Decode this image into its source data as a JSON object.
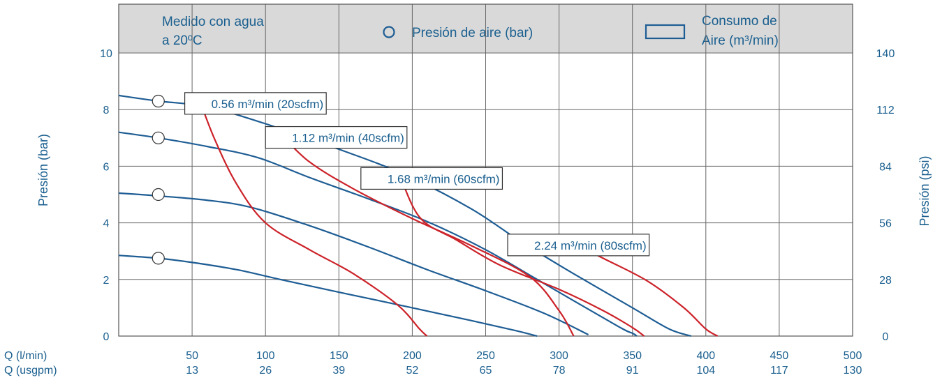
{
  "chart_data": {
    "type": "line",
    "legend": {
      "note_line1": "Medido con agua",
      "note_line2": "a 20ºC",
      "pressure_marker_label": "Presión de aire (bar)",
      "consumption_marker_label_line1": "Consumo de",
      "consumption_marker_label_line2": "Aire (m³/min)"
    },
    "ylabel_left": "Presión (bar)",
    "ylabel_right": "Presión (psi)",
    "x_row1_label": "Q (l/min)",
    "x_row2_label": "Q (usgpm)",
    "xlim": [
      0,
      500
    ],
    "ylim": [
      0,
      10
    ],
    "x_ticks_lmin": [
      "50",
      "100",
      "150",
      "200",
      "250",
      "300",
      "350",
      "400",
      "450",
      "500"
    ],
    "x_ticks_usgpm": [
      "13",
      "26",
      "39",
      "52",
      "65",
      "78",
      "91",
      "104",
      "117",
      "130"
    ],
    "y_ticks_bar": [
      "0",
      "2",
      "4",
      "6",
      "8",
      "10"
    ],
    "y_ticks_psi": [
      "0",
      "28",
      "56",
      "84",
      "112",
      "140"
    ],
    "colors": {
      "pressure_curve": "#1e5d94",
      "consumption_curve": "#cc2229",
      "text": "#1a5f8f"
    },
    "pressure_series": [
      {
        "marker": [
          27,
          2.75
        ],
        "points": [
          [
            0,
            2.85
          ],
          [
            27,
            2.75
          ],
          [
            50,
            2.6
          ],
          [
            80,
            2.35
          ],
          [
            110,
            2.0
          ],
          [
            150,
            1.55
          ],
          [
            200,
            1.0
          ],
          [
            240,
            0.55
          ],
          [
            270,
            0.2
          ],
          [
            285,
            0.0
          ]
        ]
      },
      {
        "marker": [
          27,
          5.0
        ],
        "points": [
          [
            0,
            5.05
          ],
          [
            27,
            4.95
          ],
          [
            60,
            4.8
          ],
          [
            90,
            4.55
          ],
          [
            130,
            3.9
          ],
          [
            170,
            3.15
          ],
          [
            210,
            2.35
          ],
          [
            250,
            1.6
          ],
          [
            290,
            0.8
          ],
          [
            320,
            0.05
          ]
        ]
      },
      {
        "marker": [
          27,
          7.0
        ],
        "points": [
          [
            0,
            7.2
          ],
          [
            27,
            7.0
          ],
          [
            60,
            6.7
          ],
          [
            95,
            6.3
          ],
          [
            130,
            5.6
          ],
          [
            170,
            4.85
          ],
          [
            210,
            4.05
          ],
          [
            250,
            3.05
          ],
          [
            290,
            1.85
          ],
          [
            340,
            0.35
          ],
          [
            350,
            0.1
          ],
          [
            353,
            0.0
          ]
        ]
      },
      {
        "marker": [
          27,
          8.3
        ],
        "points": [
          [
            0,
            8.5
          ],
          [
            27,
            8.3
          ],
          [
            60,
            8.1
          ],
          [
            100,
            7.5
          ],
          [
            150,
            6.6
          ],
          [
            195,
            5.7
          ],
          [
            240,
            4.5
          ],
          [
            275,
            3.3
          ],
          [
            310,
            2.2
          ],
          [
            350,
            1.0
          ],
          [
            375,
            0.25
          ],
          [
            390,
            0.0
          ]
        ]
      }
    ],
    "consumption_series": [
      {
        "label": "0.56 m³/min (20scfm)",
        "points": [
          [
            55,
            8.35
          ],
          [
            65,
            7.0
          ],
          [
            80,
            5.4
          ],
          [
            100,
            4.0
          ],
          [
            130,
            3.05
          ],
          [
            160,
            2.2
          ],
          [
            190,
            1.1
          ],
          [
            205,
            0.25
          ],
          [
            210,
            0.0
          ]
        ]
      },
      {
        "label": "1.12 m³/min (40scfm)",
        "points": [
          [
            110,
            7.15
          ],
          [
            130,
            6.15
          ],
          [
            160,
            5.2
          ],
          [
            200,
            4.15
          ],
          [
            240,
            3.2
          ],
          [
            280,
            2.1
          ],
          [
            300,
            0.9
          ],
          [
            310,
            0.0
          ]
        ]
      },
      {
        "label": "1.68 m³/min (60scfm)",
        "points": [
          [
            190,
            5.9
          ],
          [
            205,
            4.2
          ],
          [
            230,
            3.4
          ],
          [
            260,
            2.5
          ],
          [
            300,
            1.65
          ],
          [
            330,
            0.9
          ],
          [
            350,
            0.3
          ],
          [
            358,
            0.0
          ]
        ]
      },
      {
        "label": "2.24 m³/min (80scfm)",
        "points": [
          [
            305,
            3.4
          ],
          [
            330,
            2.75
          ],
          [
            360,
            1.95
          ],
          [
            385,
            1.0
          ],
          [
            400,
            0.25
          ],
          [
            408,
            0.0
          ]
        ]
      }
    ],
    "label_anchor_points": [
      [
        45,
        8.6
      ],
      [
        100,
        7.4
      ],
      [
        165,
        5.95
      ],
      [
        265,
        3.6
      ]
    ]
  }
}
